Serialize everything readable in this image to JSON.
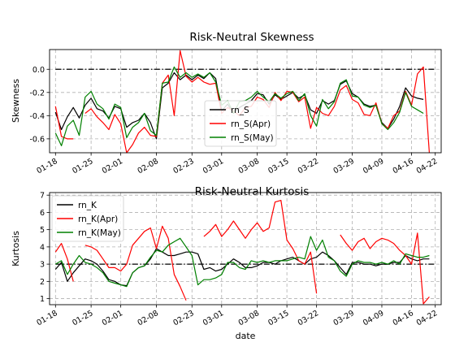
{
  "chart_data": [
    {
      "type": "line",
      "title": "Risk-Neutral Skewness",
      "xlabel": "",
      "ylabel": "Skewness",
      "xlim": [
        -1,
        65
      ],
      "ylim": [
        -0.72,
        0.17
      ],
      "yticks": [
        "0.0",
        "-0.2",
        "-0.4",
        "-0.6"
      ],
      "ytick_values": [
        0.0,
        -0.2,
        -0.4,
        -0.6
      ],
      "xticks": [
        "01-18",
        "01-25",
        "02-01",
        "02-08",
        "02-23",
        "03-01",
        "03-08",
        "03-15",
        "03-22",
        "03-29",
        "04-09",
        "04-16",
        "04-22"
      ],
      "xtick_positions": [
        0,
        6,
        11,
        17,
        23,
        28,
        34,
        39,
        44,
        50,
        55,
        60,
        64
      ],
      "grid": true,
      "legend_position": "lower-center",
      "reference_line": {
        "value": 0.0,
        "color": "#000000"
      },
      "series": [
        {
          "name": "rn_S",
          "color": "#000000",
          "values": [
            -0.37,
            -0.52,
            -0.41,
            -0.33,
            -0.42,
            -0.31,
            -0.25,
            -0.34,
            -0.36,
            -0.42,
            -0.32,
            -0.34,
            -0.5,
            -0.46,
            -0.44,
            -0.38,
            -0.46,
            -0.6,
            -0.16,
            -0.12,
            -0.03,
            -0.09,
            -0.05,
            -0.09,
            -0.05,
            -0.08,
            -0.03,
            -0.08,
            -0.36,
            -0.3,
            -0.38,
            -0.33,
            -0.3,
            -0.27,
            -0.21,
            -0.22,
            -0.3,
            -0.22,
            -0.26,
            -0.23,
            -0.2,
            -0.25,
            -0.22,
            -0.35,
            -0.38,
            -0.27,
            -0.3,
            -0.27,
            -0.13,
            -0.1,
            -0.21,
            -0.24,
            -0.3,
            -0.32,
            -0.31,
            -0.46,
            -0.51,
            -0.43,
            -0.32,
            -0.16,
            -0.23,
            -0.25,
            -0.26,
            null,
            null
          ]
        },
        {
          "name": "rn_S(Apr)",
          "color": "#ff0000",
          "values": [
            -0.32,
            -0.58,
            -0.6,
            -0.6,
            null,
            -0.38,
            -0.34,
            -0.41,
            -0.46,
            -0.52,
            -0.39,
            -0.47,
            -0.72,
            -0.65,
            -0.55,
            -0.5,
            -0.57,
            -0.58,
            -0.12,
            -0.05,
            -0.4,
            0.16,
            -0.06,
            -0.11,
            -0.07,
            -0.11,
            -0.13,
            -0.12,
            -0.38,
            -0.33,
            -0.36,
            -0.4,
            -0.33,
            -0.32,
            -0.24,
            -0.26,
            -0.33,
            -0.2,
            -0.27,
            -0.19,
            -0.2,
            -0.28,
            -0.24,
            -0.51,
            -0.33,
            -0.38,
            -0.4,
            -0.32,
            -0.18,
            -0.14,
            -0.26,
            -0.29,
            -0.39,
            -0.4,
            -0.29,
            -0.47,
            -0.51,
            -0.4,
            -0.36,
            -0.19,
            -0.31,
            -0.04,
            0.02,
            -0.72,
            null
          ]
        },
        {
          "name": "rn_S(May)",
          "color": "#008000",
          "values": [
            -0.55,
            -0.66,
            -0.49,
            -0.44,
            -0.57,
            -0.24,
            -0.19,
            -0.3,
            -0.34,
            -0.43,
            -0.3,
            -0.33,
            -0.59,
            -0.5,
            -0.46,
            -0.38,
            -0.53,
            -0.57,
            -0.12,
            -0.11,
            0.02,
            -0.07,
            -0.03,
            -0.07,
            -0.04,
            -0.07,
            -0.03,
            -0.11,
            -0.31,
            -0.27,
            -0.38,
            -0.28,
            -0.27,
            -0.24,
            -0.19,
            -0.24,
            -0.28,
            -0.21,
            -0.25,
            -0.21,
            -0.19,
            -0.27,
            -0.21,
            -0.4,
            -0.49,
            -0.26,
            -0.34,
            -0.28,
            -0.12,
            -0.09,
            -0.23,
            -0.24,
            -0.31,
            -0.33,
            -0.31,
            -0.47,
            -0.52,
            -0.46,
            -0.37,
            -0.2,
            -0.32,
            -0.35,
            -0.38,
            null,
            null
          ]
        }
      ]
    },
    {
      "type": "line",
      "title": "Risk-Neutral Kurtosis",
      "xlabel": "date",
      "ylabel": "Kurtosis",
      "xlim": [
        -1,
        65
      ],
      "ylim": [
        0.65,
        7.15
      ],
      "yticks": [
        "1",
        "2",
        "3",
        "4",
        "5",
        "6",
        "7"
      ],
      "ytick_values": [
        1,
        2,
        3,
        4,
        5,
        6,
        7
      ],
      "xticks": [
        "01-18",
        "01-25",
        "02-01",
        "02-08",
        "02-23",
        "03-01",
        "03-08",
        "03-15",
        "03-22",
        "03-29",
        "04-09",
        "04-16",
        "04-22"
      ],
      "xtick_positions": [
        0,
        6,
        11,
        17,
        23,
        28,
        34,
        39,
        44,
        50,
        55,
        60,
        64
      ],
      "grid": true,
      "legend_position": "upper-left",
      "reference_line": {
        "value": 3.0,
        "color": "#000000"
      },
      "series": [
        {
          "name": "rn_K",
          "color": "#000000",
          "values": [
            2.7,
            3.1,
            2.0,
            2.5,
            2.9,
            3.3,
            3.2,
            3.0,
            2.6,
            2.1,
            2.0,
            1.8,
            1.75,
            2.5,
            2.8,
            2.9,
            3.3,
            3.9,
            3.7,
            3.5,
            3.5,
            3.6,
            3.7,
            3.7,
            3.6,
            2.7,
            2.8,
            2.6,
            2.7,
            3.0,
            3.3,
            3.1,
            2.8,
            2.8,
            2.9,
            3.1,
            3.1,
            3.0,
            3.2,
            3.3,
            3.4,
            3.2,
            3.0,
            3.3,
            3.4,
            3.7,
            3.5,
            3.2,
            2.8,
            2.4,
            3.1,
            3.1,
            3.0,
            3.0,
            2.9,
            3.0,
            3.0,
            3.1,
            3.1,
            3.5,
            3.3,
            3.2,
            3.3,
            3.3,
            null
          ]
        },
        {
          "name": "rn_K(Apr)",
          "color": "#ff0000",
          "values": [
            3.7,
            4.2,
            3.3,
            2.0,
            null,
            4.1,
            4.0,
            3.8,
            3.3,
            2.8,
            2.8,
            2.6,
            3.0,
            4.1,
            4.5,
            4.9,
            5.1,
            3.9,
            5.2,
            4.5,
            2.4,
            1.7,
            0.9,
            null,
            null,
            4.6,
            4.9,
            5.3,
            4.6,
            5.0,
            5.5,
            5.0,
            4.5,
            5.0,
            5.4,
            4.9,
            5.1,
            6.6,
            6.7,
            4.4,
            3.9,
            3.2,
            3.0,
            3.7,
            1.3,
            null,
            null,
            null,
            4.7,
            4.2,
            3.8,
            4.3,
            4.5,
            3.9,
            4.3,
            4.5,
            4.4,
            4.2,
            3.8,
            3.5,
            3.0,
            4.8,
            0.7,
            1.1,
            null
          ]
        },
        {
          "name": "rn_K(May)",
          "color": "#008000",
          "values": [
            3.0,
            3.2,
            2.4,
            3.0,
            3.5,
            3.1,
            3.0,
            2.8,
            2.5,
            2.0,
            1.9,
            1.8,
            1.7,
            2.5,
            2.8,
            2.9,
            3.4,
            3.8,
            3.7,
            4.1,
            4.3,
            4.5,
            4.0,
            3.5,
            1.8,
            2.1,
            2.1,
            2.2,
            2.4,
            3.1,
            3.1,
            2.8,
            2.7,
            3.2,
            3.1,
            3.2,
            3.1,
            3.2,
            3.2,
            3.2,
            3.3,
            3.4,
            3.3,
            4.6,
            3.8,
            4.4,
            3.4,
            3.2,
            2.6,
            2.3,
            3.0,
            3.2,
            3.1,
            3.1,
            3.0,
            3.1,
            3.0,
            3.2,
            3.0,
            3.6,
            3.5,
            3.4,
            3.4,
            3.5,
            null
          ]
        }
      ]
    }
  ]
}
